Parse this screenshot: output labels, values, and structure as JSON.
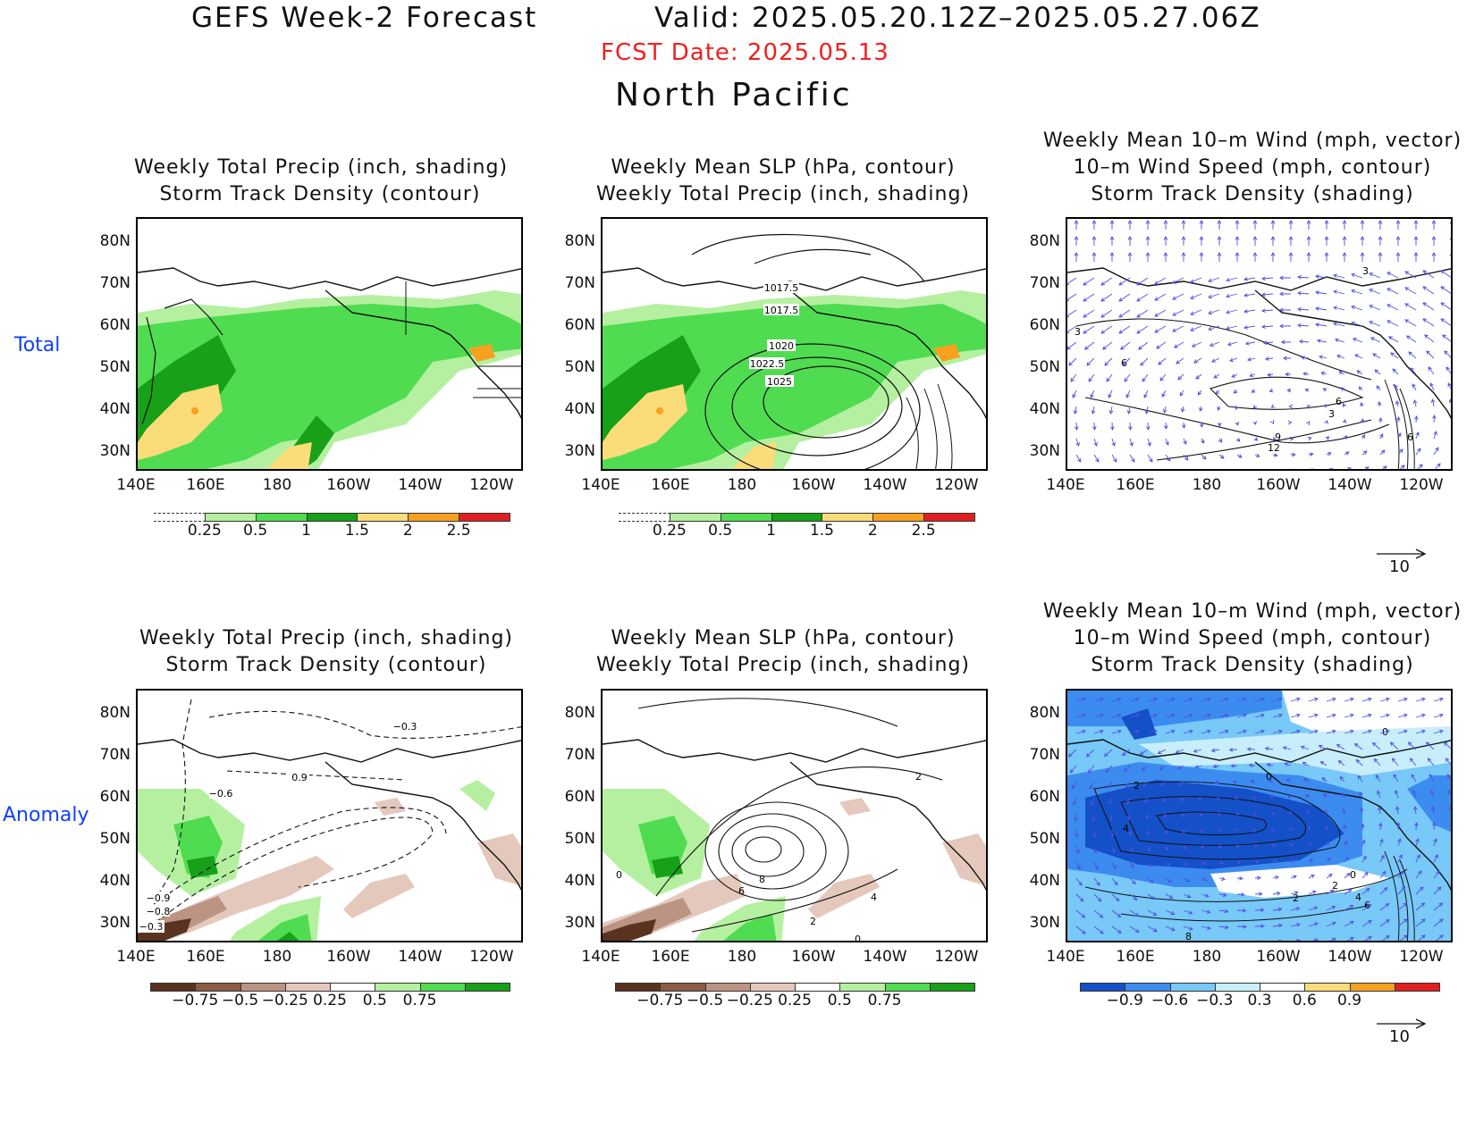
{
  "header": {
    "title": "GEFS Week-2 Forecast",
    "valid": "Valid: 2025.05.20.12Z–2025.05.27.06Z",
    "fcst_date": "FCST Date: 2025.05.13",
    "region": "North Pacific"
  },
  "rows": {
    "total": "Total",
    "anomaly": "Anomaly"
  },
  "titles": {
    "precip_storm": [
      "Weekly Total Precip (inch, shading)",
      "Storm Track Density (contour)"
    ],
    "slp_precip": [
      "Weekly Mean SLP (hPa, contour)",
      "Weekly Total Precip (inch, shading)"
    ],
    "wind": [
      "Weekly Mean 10–m Wind (mph, vector)",
      "10–m Wind Speed (mph, contour)",
      "Storm Track Density (shading)"
    ]
  },
  "axes": {
    "lat_labels": [
      "80N",
      "70N",
      "60N",
      "50N",
      "40N",
      "30N"
    ],
    "lon_labels": [
      "140E",
      "160E",
      "180",
      "160W",
      "140W",
      "120W"
    ]
  },
  "colorbars": {
    "total_precip": {
      "labels": [
        "0.25",
        "0.5",
        "1",
        "1.5",
        "2",
        "2.5"
      ],
      "colors": [
        "#ffffff",
        "#b4f0a0",
        "#50dc50",
        "#18a018",
        "#fadc78",
        "#f8a020",
        "#e02020"
      ]
    },
    "anom_precip": {
      "labels": [
        "−0.75",
        "−0.5",
        "−0.25",
        "0.25",
        "0.5",
        "0.75"
      ],
      "colors": [
        "#5a3220",
        "#8c5a46",
        "#bc9484",
        "#e4c8bc",
        "#ffffff",
        "#b4f0a0",
        "#50dc50",
        "#18a018"
      ]
    },
    "anom_storm": {
      "labels": [
        "−0.9",
        "−0.6",
        "−0.3",
        "0.3",
        "0.6",
        "0.9"
      ],
      "colors": [
        "#1450c8",
        "#3c8cf0",
        "#78c8f8",
        "#c8eefc",
        "#ffffff",
        "#fadc78",
        "#f8a020",
        "#e02020"
      ]
    }
  },
  "contour_labels": {
    "slp_total": [
      "1017.5",
      "1017.5",
      "1020",
      "1022.5",
      "1025"
    ],
    "wind_total": [
      "3",
      "3",
      "6",
      "6",
      "3",
      "9",
      "12",
      "6"
    ],
    "storm_anom": [
      "−0.3",
      "0.9",
      "−0.6",
      "−0.9",
      "−0.8",
      "−0.3"
    ],
    "slp_anom": [
      "2",
      "0",
      "8",
      "6",
      "4",
      "2",
      "0"
    ],
    "wind_anom": [
      "0",
      "0",
      "2",
      "4",
      "0",
      "2",
      "2",
      "6",
      "4",
      "8"
    ]
  },
  "vector_ref": "10",
  "colors": {
    "fcst": "#f02020",
    "row_label": "#1040ff",
    "vector": "#5050e0"
  }
}
